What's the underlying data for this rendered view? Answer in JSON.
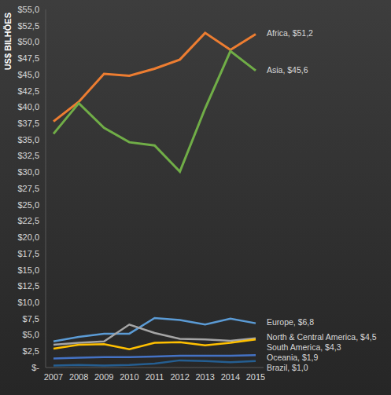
{
  "chart_data": {
    "type": "line",
    "y_label": "US$ BILHÕES",
    "categories": [
      "2007",
      "2008",
      "2009",
      "2010",
      "2011",
      "2012",
      "2013",
      "2014",
      "2015"
    ],
    "ylim": [
      0,
      55
    ],
    "yticks": [
      {
        "value": 0,
        "label": "$-"
      },
      {
        "value": 2.5,
        "label": "$2,5"
      },
      {
        "value": 5,
        "label": "$5,0"
      },
      {
        "value": 7.5,
        "label": "$7,5"
      },
      {
        "value": 10,
        "label": "$10,0"
      },
      {
        "value": 12.5,
        "label": "$12,5"
      },
      {
        "value": 15,
        "label": "$15,0"
      },
      {
        "value": 17.5,
        "label": "$17,5"
      },
      {
        "value": 20,
        "label": "$20,0"
      },
      {
        "value": 22.5,
        "label": "$22,5"
      },
      {
        "value": 25,
        "label": "$25,0"
      },
      {
        "value": 27.5,
        "label": "$27,5"
      },
      {
        "value": 30,
        "label": "$30,0"
      },
      {
        "value": 32.5,
        "label": "$32,5"
      },
      {
        "value": 35,
        "label": "$35,0"
      },
      {
        "value": 37.5,
        "label": "$37,5"
      },
      {
        "value": 40,
        "label": "$40,0"
      },
      {
        "value": 42.5,
        "label": "$42,5"
      },
      {
        "value": 45,
        "label": "$45,0"
      },
      {
        "value": 47.5,
        "label": "$47,5"
      },
      {
        "value": 50,
        "label": "$50,0"
      },
      {
        "value": 52.5,
        "label": "$52,5"
      },
      {
        "value": 55,
        "label": "$55,0"
      }
    ],
    "grid": false,
    "series": [
      {
        "name": "Africa",
        "color": "#ed7d31",
        "values": [
          37.8,
          40.8,
          45.1,
          44.8,
          45.9,
          47.3,
          51.4,
          48.8,
          51.2
        ],
        "end_label": "Africa, $51,2"
      },
      {
        "name": "Asia",
        "color": "#70ad47",
        "values": [
          35.9,
          40.6,
          36.8,
          34.6,
          34.1,
          30.1,
          39.8,
          48.6,
          45.6
        ],
        "end_label": "Asia, $45,6"
      },
      {
        "name": "Europe",
        "color": "#5b9bd5",
        "values": [
          4.0,
          4.7,
          5.2,
          5.2,
          7.6,
          7.3,
          6.6,
          7.5,
          6.8
        ],
        "end_label": "Europe, $6,8"
      },
      {
        "name": "North & Central America",
        "color": "#a5a5a5",
        "values": [
          3.5,
          3.8,
          4.0,
          6.6,
          5.3,
          4.4,
          4.3,
          4.1,
          4.5
        ],
        "end_label": "North & Central America, $4,5"
      },
      {
        "name": "South America",
        "color": "#ffc000",
        "values": [
          2.9,
          3.5,
          3.6,
          2.8,
          3.8,
          3.9,
          3.4,
          3.8,
          4.3
        ],
        "end_label": "South America, $4,3"
      },
      {
        "name": "Oceania",
        "color": "#4472c4",
        "values": [
          1.4,
          1.5,
          1.6,
          1.6,
          1.7,
          1.8,
          1.8,
          1.8,
          1.9
        ],
        "end_label": "Oceania, $1,9"
      },
      {
        "name": "Brazil",
        "color": "#255e91",
        "values": [
          0.3,
          0.4,
          0.3,
          0.4,
          0.6,
          1.1,
          1.0,
          0.8,
          1.0
        ],
        "end_label": "Brazil, $1,0"
      }
    ]
  }
}
